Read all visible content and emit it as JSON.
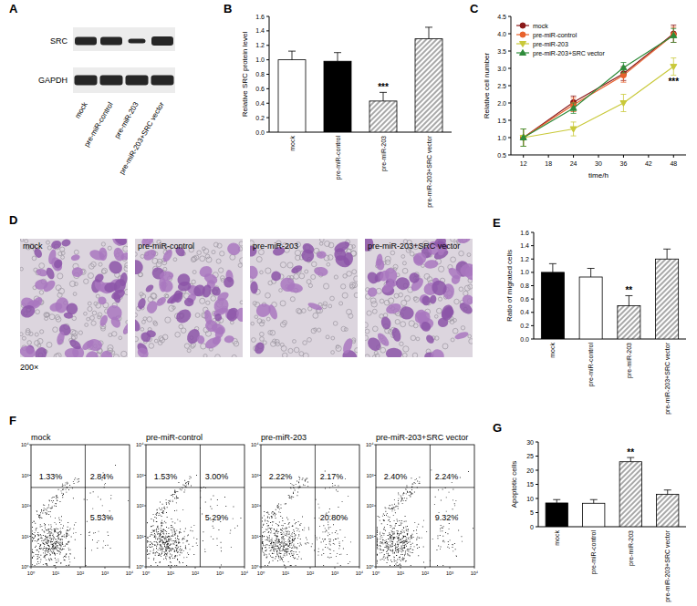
{
  "chart_data": [
    {
      "type": "bar",
      "title": "B",
      "y_label": "Relative SRC protein level",
      "categories": [
        "mock",
        "pre-miR-control",
        "pre-miR-203",
        "pre-miR-203+SRC vector"
      ],
      "values": [
        1.0,
        0.98,
        0.43,
        1.29
      ],
      "errors": [
        0.12,
        0.12,
        0.12,
        0.16
      ],
      "colors": [
        "#ffffff",
        "#000000",
        "#8c8c8c",
        "#8c8c8c"
      ],
      "ylim": [
        0,
        1.6
      ],
      "yticks": [
        {
          "value": 0,
          "label": "0.0"
        },
        0.2,
        0.4,
        0.6,
        0.8,
        {
          "value": 1,
          "label": "1.0"
        },
        1.2,
        1.4,
        1.6
      ],
      "annotations": [
        {
          "text": "***",
          "category": "pre-miR-203"
        }
      ]
    },
    {
      "type": "line",
      "title": "C",
      "x_label": "time/h",
      "y_label": "Relative cell number",
      "x": [
        12,
        24,
        36,
        48
      ],
      "xlim": [
        9,
        51
      ],
      "xticks": [
        12,
        18,
        24,
        30,
        36,
        42,
        48
      ],
      "ylim": [
        0.5,
        4.5
      ],
      "yticks": [
        0.5,
        {
          "value": 1,
          "label": "1.0"
        },
        1.5,
        {
          "value": 2,
          "label": "2.0"
        },
        2.5,
        {
          "value": 3,
          "label": "3.0"
        },
        3.5,
        {
          "value": 4,
          "label": "4.0"
        },
        4.5
      ],
      "legend": "upper left",
      "series": [
        {
          "name": "mock",
          "color": "#8b1a1a",
          "marker": "circle",
          "values": [
            1,
            2.02,
            2.85,
            4.0
          ],
          "errors": [
            0.25,
            0.18,
            0.2,
            0.25
          ]
        },
        {
          "name": "pre-miR-control",
          "color": "#e8622c",
          "marker": "circle",
          "values": [
            1,
            1.95,
            2.8,
            3.97
          ],
          "errors": [
            0.25,
            0.2,
            0.2,
            0.22
          ]
        },
        {
          "name": "pre-miR-203",
          "color": "#c9c93a",
          "marker": "triangle-down",
          "values": [
            1,
            1.25,
            2.0,
            3.05
          ],
          "errors": [
            0.25,
            0.2,
            0.25,
            0.25
          ]
        },
        {
          "name": "pre-miR-203+SRC vector",
          "color": "#2e8b3a",
          "marker": "triangle-up",
          "values": [
            1,
            1.85,
            3.02,
            3.95
          ],
          "errors": [
            0.25,
            0.15,
            0.15,
            0.2
          ]
        }
      ],
      "annotations": [
        {
          "text": "***",
          "x": 48,
          "series": "pre-miR-203"
        }
      ]
    },
    {
      "type": "bar",
      "title": "E",
      "y_label": "Ratio of migrated cells",
      "categories": [
        "mock",
        "pre-miR-control",
        "pre-miR-203",
        "pre-miR-203+SRC vector"
      ],
      "values": [
        1.0,
        0.93,
        0.5,
        1.2
      ],
      "errors": [
        0.13,
        0.13,
        0.15,
        0.15
      ],
      "colors": [
        "#000000",
        "#ffffff",
        "#8c8c8c",
        "#8c8c8c"
      ],
      "ylim": [
        0,
        1.6
      ],
      "yticks": [
        {
          "value": 0,
          "label": "0.0"
        },
        0.2,
        0.4,
        0.6,
        0.8,
        {
          "value": 1,
          "label": "1.0"
        },
        1.2,
        1.4,
        1.6
      ],
      "annotations": [
        {
          "text": "**",
          "category": "pre-miR-203"
        }
      ]
    },
    {
      "type": "bar",
      "title": "G",
      "y_label": "Apoptotic cells",
      "categories": [
        "mock",
        "pre-miR-control",
        "pre-miR-203",
        "pre-miR-203+SRC vector"
      ],
      "values": [
        8.4,
        8.3,
        23.0,
        11.5
      ],
      "errors": [
        1.2,
        1.3,
        1.5,
        1.5
      ],
      "colors": [
        "#000000",
        "#ffffff",
        "#8c8c8c",
        "#8c8c8c"
      ],
      "ylim": [
        0,
        30
      ],
      "yticks": [
        0,
        5,
        10,
        15,
        20,
        25,
        30
      ],
      "annotations": [
        {
          "text": "**",
          "category": "pre-miR-203"
        }
      ]
    }
  ],
  "blot": {
    "panel": "A",
    "rows": [
      "SRC",
      "GAPDH"
    ],
    "lanes": [
      "mock",
      "pre-miR-control",
      "pre-miR-203",
      "pre-miR-203+SRC vector"
    ]
  },
  "micrographs": {
    "panel": "D",
    "labels": [
      "mock",
      "pre-miR-control",
      "pre-miR-203",
      "pre-miR-203+SRC vector"
    ],
    "magnification": "200×"
  },
  "flow": {
    "panel": "F",
    "xlim": [
      0,
      4
    ],
    "ylim": [
      0,
      4
    ],
    "xticks": [
      {
        "value": 0,
        "label": "10⁰"
      },
      {
        "value": 1,
        "label": "10¹"
      },
      {
        "value": 2,
        "label": "10²"
      },
      {
        "value": 3,
        "label": "10³"
      },
      {
        "value": 4,
        "label": "10⁴"
      }
    ],
    "yticks": [
      {
        "value": 0,
        "label": "10⁰"
      },
      {
        "value": 1,
        "label": "10¹"
      },
      {
        "value": 2,
        "label": "10²"
      },
      {
        "value": 3,
        "label": "10³"
      },
      {
        "value": 4,
        "label": "10⁴"
      }
    ],
    "plots": [
      {
        "label": "mock",
        "upper_left": "1.33%",
        "upper_right": "2.84%",
        "lower_right": "5.53%"
      },
      {
        "label": "pre-miR-control",
        "upper_left": "1.53%",
        "upper_right": "3.00%",
        "lower_right": "5.29%"
      },
      {
        "label": "pre-miR-203",
        "upper_left": "2.22%",
        "upper_right": "2.17%",
        "lower_right": "20.80%"
      },
      {
        "label": "pre-miR-203+SRC vector",
        "upper_left": "2.40%",
        "upper_right": "2.24%",
        "lower_right": "9.32%"
      }
    ]
  }
}
